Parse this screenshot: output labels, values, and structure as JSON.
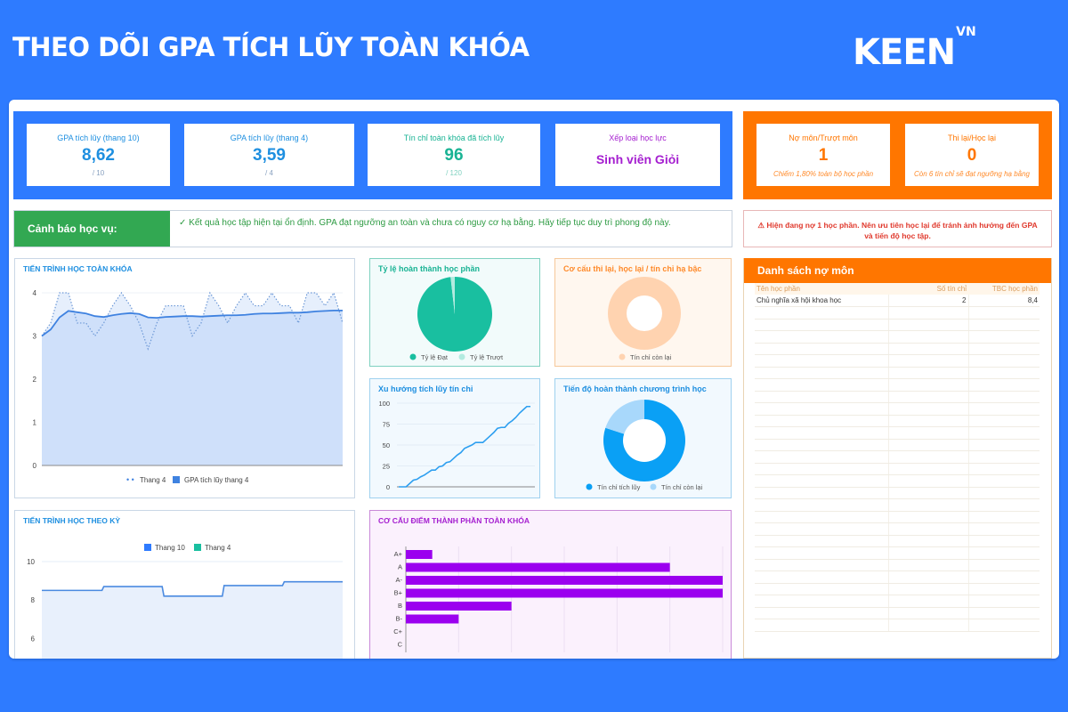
{
  "header": {
    "title": "THEO DÕI GPA TÍCH LŨY TOÀN KHÓA",
    "brand": "KEEN",
    "brand_sup": "VN"
  },
  "kpis": [
    {
      "label": "GPA tích lũy (thang 10)",
      "value": "8,62",
      "sub": "/ 10",
      "color": "#1e8fe0"
    },
    {
      "label": "GPA tích lũy (thang 4)",
      "value": "3,59",
      "sub": "/ 4",
      "color": "#1e8fe0"
    },
    {
      "label": "Tín chỉ toàn khóa đã tích lũy",
      "value": "96",
      "sub": "/ 120",
      "color": "#19b394"
    },
    {
      "label": "Xếp loại học lực",
      "value": "Sinh viên Giỏi",
      "color": "#a51fd0"
    }
  ],
  "risk_kpis": [
    {
      "label": "Nợ môn/Trượt môn",
      "value": "1",
      "note": "Chiếm 1,80% toàn bộ học phần"
    },
    {
      "label": "Thi lại/Học lại",
      "value": "0",
      "note": "Còn 6 tín chỉ sẽ đạt ngưỡng hạ bằng"
    }
  ],
  "academic_alert": {
    "label": "Cảnh báo học vụ:",
    "message": "✓ Kết quả học tập hiện tại ổn định. GPA đạt ngưỡng an toàn và chưa có nguy cơ hạ bằng. Hãy tiếp tục duy trì phong độ này."
  },
  "debt_alert": "⚠ Hiện đang nợ 1 học phần. Nên ưu tiên học lại để tránh ảnh hưởng đến GPA và tiến độ học tập.",
  "debt_list": {
    "title": "Danh sách nợ môn",
    "columns": [
      "Tên học phần",
      "Số tín chỉ",
      "TBC học phần"
    ],
    "rows": [
      [
        "Chủ nghĩa xã hội khoa học",
        "2",
        "8,4"
      ]
    ],
    "empty_rows": 27
  },
  "chart_data": [
    {
      "id": "overall",
      "type": "line",
      "title": "TIẾN TRÌNH HỌC TOÀN KHÓA",
      "ylim": [
        0,
        4
      ],
      "yticks": [
        0,
        1,
        2,
        3,
        4
      ],
      "legend": [
        "Thang 4",
        "GPA tích lũy thang 4"
      ],
      "series": [
        {
          "name": "Thang 4",
          "style": "dotted",
          "values": [
            3.0,
            3.3,
            4.0,
            4.0,
            3.3,
            3.3,
            3.0,
            3.3,
            3.7,
            4.0,
            3.7,
            3.3,
            2.7,
            3.3,
            3.7,
            3.7,
            3.7,
            3.0,
            3.3,
            4.0,
            3.7,
            3.3,
            3.7,
            4.0,
            3.7,
            3.7,
            4.0,
            3.7,
            3.7,
            3.3,
            4.0,
            4.0,
            3.7,
            4.0,
            3.3
          ]
        },
        {
          "name": "GPA tích lũy thang 4",
          "style": "area",
          "values": [
            3.0,
            3.15,
            3.43,
            3.58,
            3.55,
            3.52,
            3.46,
            3.44,
            3.48,
            3.51,
            3.53,
            3.51,
            3.43,
            3.42,
            3.44,
            3.45,
            3.46,
            3.46,
            3.45,
            3.46,
            3.47,
            3.48,
            3.48,
            3.49,
            3.51,
            3.52,
            3.52,
            3.53,
            3.54,
            3.54,
            3.55,
            3.57,
            3.58,
            3.59,
            3.59
          ]
        }
      ]
    },
    {
      "id": "pass_rate",
      "type": "pie",
      "title": "Tỷ lệ hoàn thành học phần",
      "categories": [
        "Tỷ lệ Đạt",
        "Tỷ lệ Trượt"
      ],
      "values": [
        98.2,
        1.8
      ],
      "colors": [
        "#19bfa0",
        "#b3ebe0"
      ]
    },
    {
      "id": "retake",
      "type": "pie",
      "title": "Cơ cấu thi lại, học lại / tín chỉ hạ bậc",
      "categories": [
        "Tín chỉ còn lại"
      ],
      "values": [
        100
      ],
      "colors": [
        "#ffd3b0"
      ],
      "donut": true
    },
    {
      "id": "credit_trend",
      "type": "line",
      "title": "Xu hướng tích lũy tín chỉ",
      "ylim": [
        0,
        100
      ],
      "yticks": [
        0,
        25,
        50,
        75,
        100
      ],
      "values": [
        0,
        0,
        0,
        4,
        8,
        9,
        12,
        14,
        17,
        20,
        20,
        24,
        25,
        29,
        30,
        34,
        38,
        41,
        46,
        48,
        50,
        53,
        53,
        53,
        57,
        61,
        65,
        70,
        71,
        71,
        76,
        79,
        83,
        88,
        92,
        96,
        96
      ]
    },
    {
      "id": "program_progress",
      "type": "pie",
      "title": "Tiến độ hoàn thành chương trình học",
      "categories": [
        "Tín chỉ tích lũy",
        "Tín chỉ còn lại"
      ],
      "values": [
        96,
        24
      ],
      "colors": [
        "#0aa0f5",
        "#a8d8fb"
      ],
      "donut": true
    },
    {
      "id": "semester",
      "type": "area",
      "title": "TIẾN TRÌNH HỌC THEO KỲ",
      "legend": [
        {
          "name": "Thang 10",
          "color": "#2e7bff"
        },
        {
          "name": "Thang 4",
          "color": "#19bfa0"
        }
      ],
      "yticks": [
        6,
        8,
        10
      ],
      "visible_ylim": [
        4.3,
        10
      ],
      "values": [
        8.5,
        8.7,
        8.2,
        8.75,
        8.95
      ]
    },
    {
      "id": "grade_dist",
      "type": "bar",
      "orientation": "horizontal",
      "title": "CƠ CẤU ĐIỂM THÀNH PHẦN TOÀN KHÓA",
      "categories": [
        "A+",
        "A",
        "A-",
        "B+",
        "B",
        "B-",
        "C+",
        "C"
      ],
      "values": [
        1,
        10,
        12,
        12,
        4,
        2,
        0,
        0
      ],
      "xlim": [
        0,
        12
      ],
      "color": "#9b00ef"
    }
  ]
}
